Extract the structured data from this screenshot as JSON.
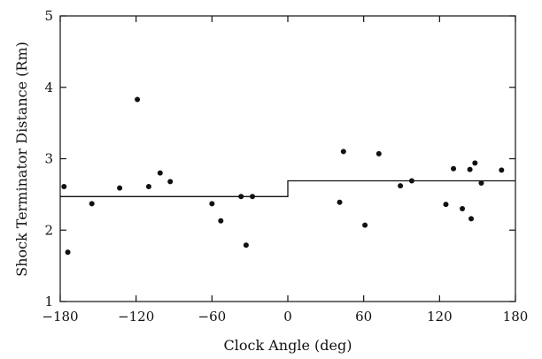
{
  "chart_data": {
    "type": "scatter",
    "title": "",
    "xlabel": "Clock Angle (deg)",
    "ylabel": "Shock Terminator Distance (Rm)",
    "xlim": [
      -180,
      180
    ],
    "ylim": [
      1,
      5
    ],
    "xticks": [
      -180,
      -120,
      -60,
      0,
      60,
      120,
      180
    ],
    "xtick_labels": [
      "−180",
      "−120",
      "−60",
      "0",
      "60",
      "120",
      "180"
    ],
    "yticks": [
      1,
      2,
      3,
      4,
      5
    ],
    "ytick_labels": [
      "1",
      "2",
      "3",
      "4",
      "5"
    ],
    "grid": false,
    "series": [
      {
        "points": [
          {
            "x": -177,
            "y": 2.61
          },
          {
            "x": -174,
            "y": 1.69
          },
          {
            "x": -155,
            "y": 2.37
          },
          {
            "x": -133,
            "y": 2.59
          },
          {
            "x": -119,
            "y": 3.83
          },
          {
            "x": -110,
            "y": 2.61
          },
          {
            "x": -101,
            "y": 2.8
          },
          {
            "x": -93,
            "y": 2.68
          },
          {
            "x": -60,
            "y": 2.37
          },
          {
            "x": -53,
            "y": 2.13
          },
          {
            "x": -37,
            "y": 2.47
          },
          {
            "x": -33,
            "y": 1.79
          },
          {
            "x": -28,
            "y": 2.47
          },
          {
            "x": 41,
            "y": 2.39
          },
          {
            "x": 44,
            "y": 3.1
          },
          {
            "x": 61,
            "y": 2.07
          },
          {
            "x": 72,
            "y": 3.07
          },
          {
            "x": 89,
            "y": 2.62
          },
          {
            "x": 98,
            "y": 2.69
          },
          {
            "x": 125,
            "y": 2.36
          },
          {
            "x": 131,
            "y": 2.86
          },
          {
            "x": 138,
            "y": 2.3
          },
          {
            "x": 144,
            "y": 2.85
          },
          {
            "x": 145,
            "y": 2.16
          },
          {
            "x": 148,
            "y": 2.94
          },
          {
            "x": 153,
            "y": 2.66
          },
          {
            "x": 169,
            "y": 2.84
          }
        ]
      }
    ],
    "step_line": [
      {
        "x0": -180,
        "x1": 0,
        "y": 2.47
      },
      {
        "x0": 0,
        "x1": 180,
        "y": 2.69
      }
    ]
  }
}
